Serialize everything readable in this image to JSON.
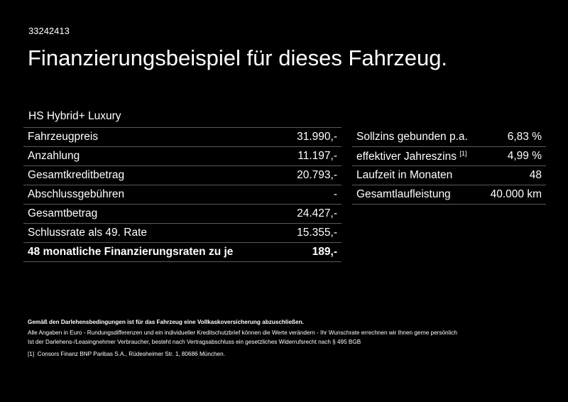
{
  "ref_id": "33242413",
  "title": "Finanzierungsbeispiel für dieses Fahrzeug.",
  "model": "HS Hybrid+ Luxury",
  "left_table": [
    {
      "label": "Fahrzeugpreis",
      "value": "31.990,-"
    },
    {
      "label": "Anzahlung",
      "value": "11.197,-"
    },
    {
      "label": "Gesamtkreditbetrag",
      "value": "20.793,-"
    },
    {
      "label": "Abschlussgebühren",
      "value": "-"
    },
    {
      "label": "Gesamtbetrag",
      "value": "24.427,-"
    },
    {
      "label": "Schlussrate als 49. Rate",
      "value": "15.355,-"
    },
    {
      "label": "48 monatliche Finanzierungsraten zu je",
      "value": "189,-",
      "bold": true
    }
  ],
  "right_table": [
    {
      "label": "Sollzins gebunden p.a.",
      "value": "6,83 %"
    },
    {
      "label": "effektiver Jahreszins",
      "footnote": "[1]",
      "value": "4,99 %"
    },
    {
      "label": "Laufzeit in Monaten",
      "value": "48"
    },
    {
      "label": "Gesamtlaufleistung",
      "value": "40.000 km"
    }
  ],
  "footer": {
    "insurance_note": "Gemäß den Darlehensbedingungen ist für das Fahrzeug eine Vollkaskoversicherung abzuschließen.",
    "line1": "Alle Angaben in Euro - Rundungsdifferenzen und ein individueller Kreditschutzbrief können die Werte verändern - Ihr Wunschrate errechnen wir Ihnen gerne persönlich",
    "line2": "Ist der Darlehens-/Leasingnehmer Verbraucher, besteht nach Vertragsabschluss ein gesetzliches Widerrufsrecht nach § 495 BGB",
    "footnote_marker": "[1]",
    "footnote_text": "Consors Finanz BNP Paribas S.A., Rüdesheimer Str. 1, 80686 München."
  }
}
